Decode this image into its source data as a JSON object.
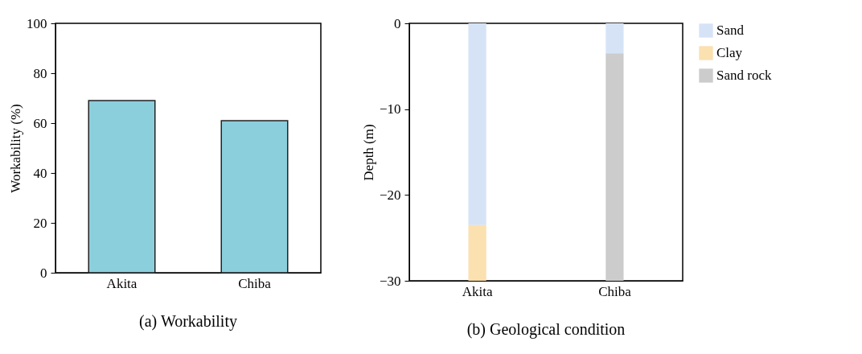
{
  "chart_data": [
    {
      "type": "bar",
      "title": "(a)   Workability",
      "categories": [
        "Akita",
        "Chiba"
      ],
      "values": [
        69,
        61
      ],
      "color": "#8ccfdc",
      "ylabel": "Workability (%)",
      "ylim": [
        0,
        100
      ],
      "yticks": [
        0,
        20,
        40,
        60,
        80,
        100
      ]
    },
    {
      "type": "bar",
      "title": "(b)   Geological condition",
      "categories": [
        "Akita",
        "Chiba"
      ],
      "stacked": true,
      "ylabel": "Depth (m)",
      "ylim": [
        -30,
        0
      ],
      "yticks": [
        -30,
        -20,
        -10,
        0
      ],
      "legend": "right",
      "series": [
        {
          "name": "Sand",
          "color": "#d6e3f7",
          "values": [
            -23.5,
            -3.5
          ]
        },
        {
          "name": "Clay",
          "color": "#fbe0b0",
          "values": [
            -6.5,
            null
          ]
        },
        {
          "name": "Sand rock",
          "color": "#cccccc",
          "values": [
            null,
            -26.5
          ]
        }
      ]
    }
  ]
}
